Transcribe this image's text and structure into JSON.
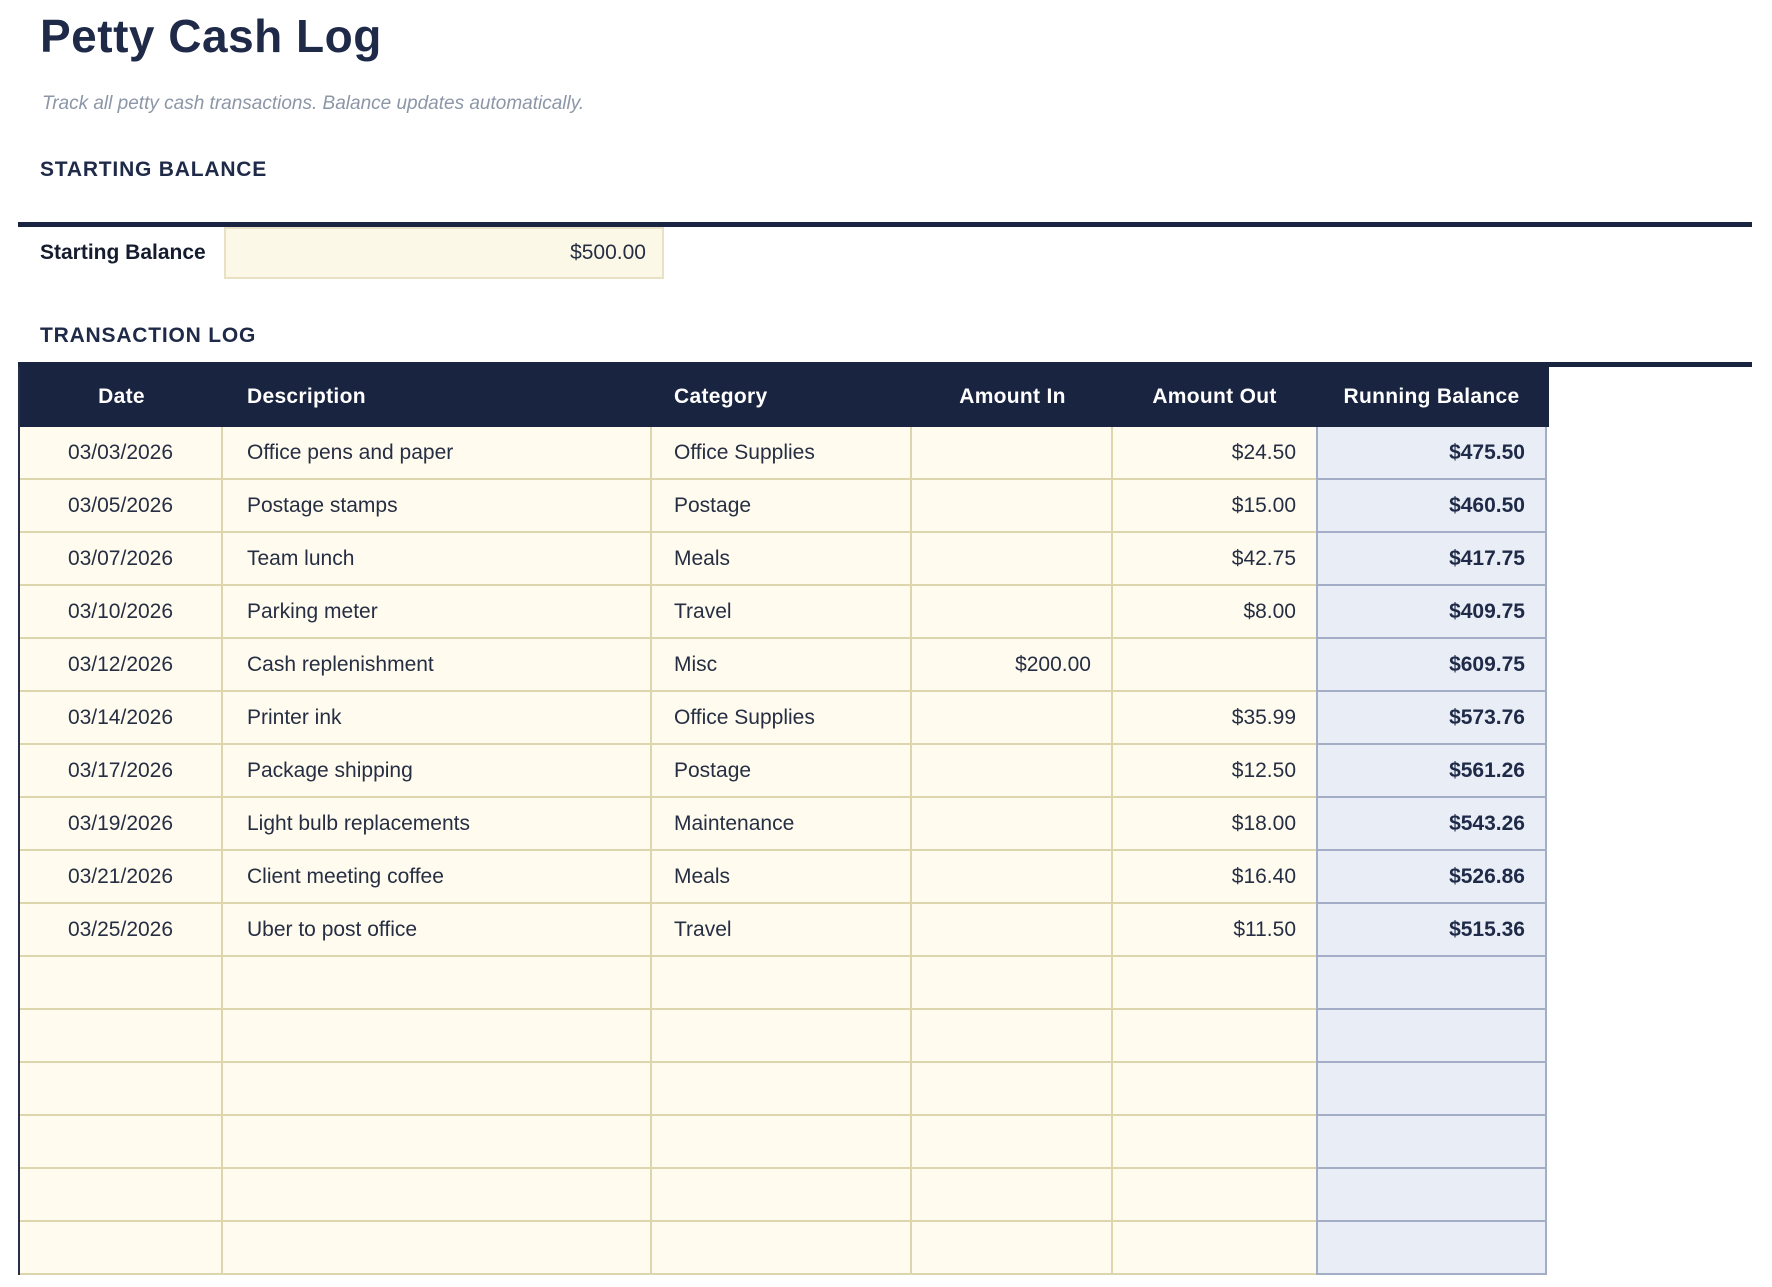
{
  "page": {
    "title": "Petty Cash Log",
    "subtitle": "Track all petty cash transactions. Balance updates automatically."
  },
  "starting_balance": {
    "section_title": "STARTING BALANCE",
    "label": "Starting Balance",
    "value": "$500.00"
  },
  "table": {
    "section_title": "TRANSACTION LOG",
    "columns": [
      "Date",
      "Description",
      "Category",
      "Amount In",
      "Amount Out",
      "Running Balance"
    ],
    "rows": [
      {
        "date": "03/03/2026",
        "description": "Office pens and paper",
        "category": "Office Supplies",
        "amount_in": "",
        "amount_out": "$24.50",
        "running_balance": "$475.50"
      },
      {
        "date": "03/05/2026",
        "description": "Postage stamps",
        "category": "Postage",
        "amount_in": "",
        "amount_out": "$15.00",
        "running_balance": "$460.50"
      },
      {
        "date": "03/07/2026",
        "description": "Team lunch",
        "category": "Meals",
        "amount_in": "",
        "amount_out": "$42.75",
        "running_balance": "$417.75"
      },
      {
        "date": "03/10/2026",
        "description": "Parking meter",
        "category": "Travel",
        "amount_in": "",
        "amount_out": "$8.00",
        "running_balance": "$409.75"
      },
      {
        "date": "03/12/2026",
        "description": "Cash replenishment",
        "category": "Misc",
        "amount_in": "$200.00",
        "amount_out": "",
        "running_balance": "$609.75"
      },
      {
        "date": "03/14/2026",
        "description": "Printer ink",
        "category": "Office Supplies",
        "amount_in": "",
        "amount_out": "$35.99",
        "running_balance": "$573.76"
      },
      {
        "date": "03/17/2026",
        "description": "Package shipping",
        "category": "Postage",
        "amount_in": "",
        "amount_out": "$12.50",
        "running_balance": "$561.26"
      },
      {
        "date": "03/19/2026",
        "description": "Light bulb replacements",
        "category": "Maintenance",
        "amount_in": "",
        "amount_out": "$18.00",
        "running_balance": "$543.26"
      },
      {
        "date": "03/21/2026",
        "description": "Client meeting coffee",
        "category": "Meals",
        "amount_in": "",
        "amount_out": "$16.40",
        "running_balance": "$526.86"
      },
      {
        "date": "03/25/2026",
        "description": "Uber to post office",
        "category": "Travel",
        "amount_in": "",
        "amount_out": "$11.50",
        "running_balance": "$515.36"
      }
    ],
    "empty_row_count": 6
  },
  "colors": {
    "navy_header": "#192440",
    "navy_text": "#1e2a47",
    "entry_cell_bg": "#fffbef",
    "entry_cell_border": "#ddd5ac",
    "balance_cell_bg": "#e9edf6",
    "balance_cell_border": "#a3adc6",
    "input_bg": "#fcf8e8",
    "input_border": "#e9e1c4",
    "subtitle_gray": "#8c96a7"
  }
}
